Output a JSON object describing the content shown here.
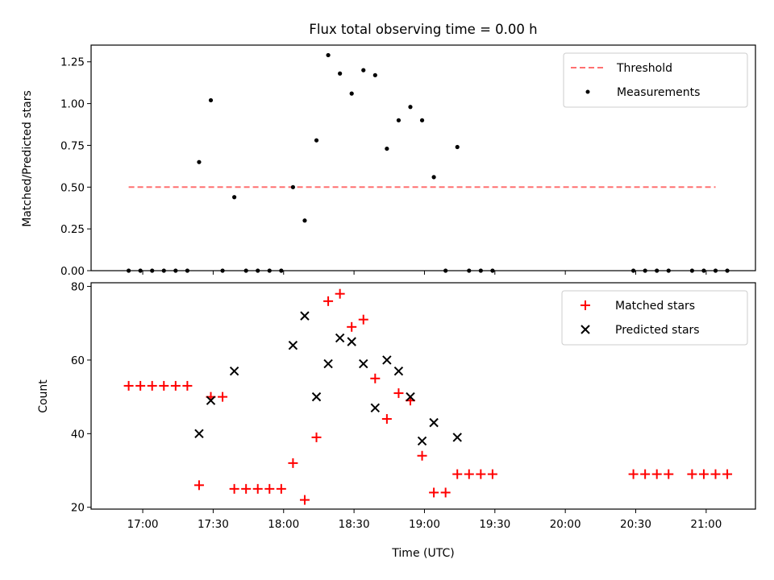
{
  "chart_data": [
    {
      "type": "scatter",
      "title": "Flux total observing time = 0.00 h",
      "xlabel": "",
      "ylabel": "Matched/Predicted stars",
      "xlim": [
        "16:38",
        "21:21"
      ],
      "ylim": [
        0,
        1.35
      ],
      "yticks": [
        0.0,
        0.25,
        0.5,
        0.75,
        1.0,
        1.25
      ],
      "ytick_labels": [
        "0.00",
        "0.25",
        "0.50",
        "0.75",
        "1.00",
        "1.25"
      ],
      "legend_position": "top-right",
      "threshold": {
        "name": "Threshold",
        "color": "#ff7070",
        "style": "dashed",
        "value": 0.5,
        "x_start": "16:54",
        "x_end": "21:04"
      },
      "series": [
        {
          "name": "Measurements",
          "color": "#000000",
          "marker": "dot",
          "points": [
            [
              "16:54",
              0.0
            ],
            [
              "16:59",
              0.0
            ],
            [
              "17:04",
              0.0
            ],
            [
              "17:09",
              0.0
            ],
            [
              "17:14",
              0.0
            ],
            [
              "17:19",
              0.0
            ],
            [
              "17:24",
              0.65
            ],
            [
              "17:29",
              1.02
            ],
            [
              "17:34",
              0.0
            ],
            [
              "17:39",
              0.44
            ],
            [
              "17:44",
              0.0
            ],
            [
              "17:49",
              0.0
            ],
            [
              "17:54",
              0.0
            ],
            [
              "17:59",
              0.0
            ],
            [
              "18:04",
              0.5
            ],
            [
              "18:09",
              0.3
            ],
            [
              "18:14",
              0.78
            ],
            [
              "18:19",
              1.29
            ],
            [
              "18:24",
              1.18
            ],
            [
              "18:29",
              1.06
            ],
            [
              "18:34",
              1.2
            ],
            [
              "18:39",
              1.17
            ],
            [
              "18:44",
              0.73
            ],
            [
              "18:49",
              0.9
            ],
            [
              "18:54",
              0.98
            ],
            [
              "18:59",
              0.9
            ],
            [
              "19:04",
              0.56
            ],
            [
              "19:09",
              0.0
            ],
            [
              "19:14",
              0.74
            ],
            [
              "19:19",
              0.0
            ],
            [
              "19:24",
              0.0
            ],
            [
              "19:29",
              0.0
            ],
            [
              "20:29",
              0.0
            ],
            [
              "20:34",
              0.0
            ],
            [
              "20:39",
              0.0
            ],
            [
              "20:44",
              0.0
            ],
            [
              "20:54",
              0.0
            ],
            [
              "20:59",
              0.0
            ],
            [
              "21:04",
              0.0
            ],
            [
              "21:09",
              0.0
            ]
          ]
        }
      ]
    },
    {
      "type": "scatter",
      "title": "",
      "xlabel": "Time (UTC)",
      "ylabel": "Count",
      "xlim": [
        "16:38",
        "21:21"
      ],
      "ylim": [
        19.5,
        81
      ],
      "yticks": [
        20,
        40,
        60,
        80
      ],
      "ytick_labels": [
        "20",
        "40",
        "60",
        "80"
      ],
      "xticks": [
        "17:00",
        "17:30",
        "18:00",
        "18:30",
        "19:00",
        "19:30",
        "20:00",
        "20:30",
        "21:00"
      ],
      "legend_position": "top-right",
      "series": [
        {
          "name": "Matched stars",
          "color": "#ff0000",
          "marker": "plus",
          "points": [
            [
              "16:54",
              53
            ],
            [
              "16:59",
              53
            ],
            [
              "17:04",
              53
            ],
            [
              "17:09",
              53
            ],
            [
              "17:14",
              53
            ],
            [
              "17:19",
              53
            ],
            [
              "17:24",
              26
            ],
            [
              "17:29",
              50
            ],
            [
              "17:34",
              50
            ],
            [
              "17:39",
              25
            ],
            [
              "17:44",
              25
            ],
            [
              "17:49",
              25
            ],
            [
              "17:54",
              25
            ],
            [
              "17:59",
              25
            ],
            [
              "18:04",
              32
            ],
            [
              "18:09",
              22
            ],
            [
              "18:14",
              39
            ],
            [
              "18:19",
              76
            ],
            [
              "18:24",
              78
            ],
            [
              "18:29",
              69
            ],
            [
              "18:34",
              71
            ],
            [
              "18:39",
              55
            ],
            [
              "18:44",
              44
            ],
            [
              "18:49",
              51
            ],
            [
              "18:54",
              49
            ],
            [
              "18:59",
              34
            ],
            [
              "19:04",
              24
            ],
            [
              "19:09",
              24
            ],
            [
              "19:14",
              29
            ],
            [
              "19:19",
              29
            ],
            [
              "19:24",
              29
            ],
            [
              "19:29",
              29
            ],
            [
              "20:29",
              29
            ],
            [
              "20:34",
              29
            ],
            [
              "20:39",
              29
            ],
            [
              "20:44",
              29
            ],
            [
              "20:54",
              29
            ],
            [
              "20:59",
              29
            ],
            [
              "21:04",
              29
            ],
            [
              "21:09",
              29
            ]
          ]
        },
        {
          "name": "Predicted stars",
          "color": "#000000",
          "marker": "x",
          "points": [
            [
              "17:24",
              40
            ],
            [
              "17:29",
              49
            ],
            [
              "17:39",
              57
            ],
            [
              "18:04",
              64
            ],
            [
              "18:09",
              72
            ],
            [
              "18:14",
              50
            ],
            [
              "18:19",
              59
            ],
            [
              "18:24",
              66
            ],
            [
              "18:29",
              65
            ],
            [
              "18:34",
              59
            ],
            [
              "18:39",
              47
            ],
            [
              "18:44",
              60
            ],
            [
              "18:49",
              57
            ],
            [
              "18:54",
              50
            ],
            [
              "18:59",
              38
            ],
            [
              "19:04",
              43
            ],
            [
              "19:14",
              39
            ]
          ]
        }
      ]
    }
  ]
}
